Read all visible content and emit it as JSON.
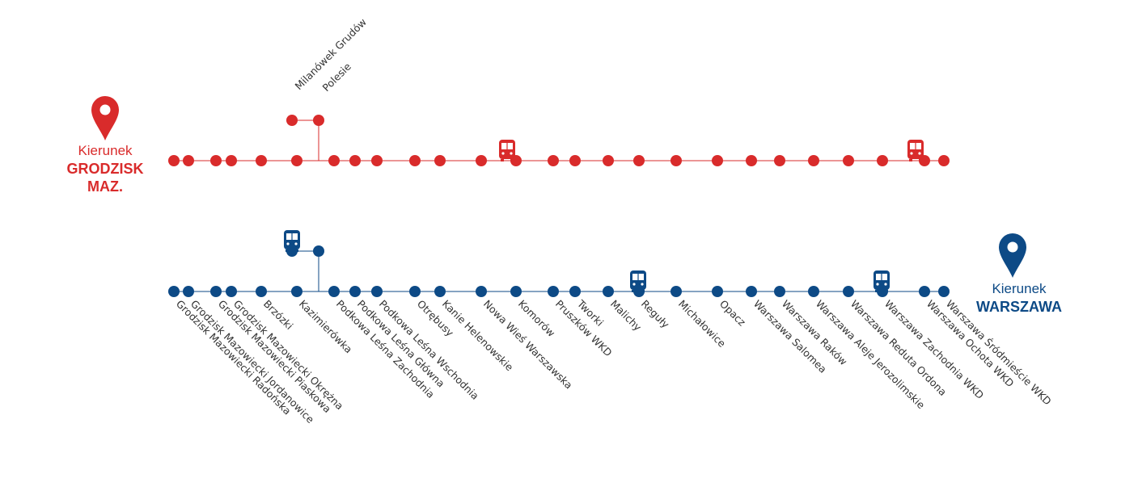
{
  "colors": {
    "red": "#d92b2b",
    "blue": "#0d4a86",
    "text": "#333333"
  },
  "direction_west": {
    "prefix": "Kierunek",
    "line1": "GRODZISK",
    "line2": "MAZ.",
    "icon": "map-pin-icon"
  },
  "direction_east": {
    "prefix": "Kierunek",
    "line1": "WARSZAWA",
    "icon": "map-pin-icon"
  },
  "branch_stations": [
    "Milanówek Grudów",
    "Polesie"
  ],
  "stations": [
    "Grodzisk Mazowiecki Radońska",
    "Grodzisk Mazowiecki Jordanowice",
    "Grodzisk Mazowiecki Piaskowa",
    "Grodzisk Mazowiecki Okrężna",
    "Brzózki",
    "Kazimierówka",
    "Podkowa Leśna Zachodnia",
    "Podkowa Leśna Główna",
    "Podkowa Leśna Wschodnia",
    "Otrębusy",
    "Kanie Helenowskie",
    "Nowa Wieś Warszawska",
    "Komorów",
    "Pruszków WKD",
    "Tworki",
    "Malichy",
    "Reguły",
    "Michałowice",
    "Opacz",
    "Warszawa Salomea",
    "Warszawa Raków",
    "Warszawa Aleje Jerozolimskie",
    "Warszawa Reduta Ordona",
    "Warszawa Zachodnia WKD",
    "Warszawa Ochota WKD",
    "Warszawa Śródmieście WKD"
  ],
  "trains": {
    "west": [
      12,
      24
    ],
    "east": [
      5,
      16,
      23
    ]
  }
}
